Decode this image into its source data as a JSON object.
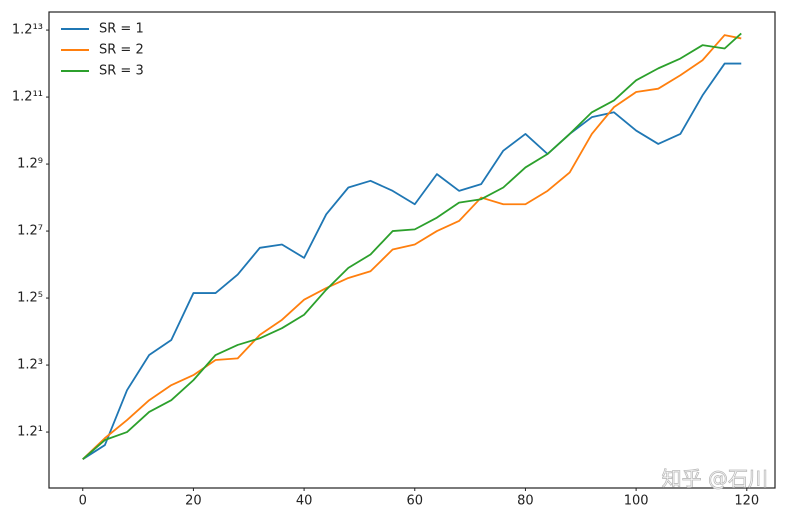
{
  "chart_data": {
    "type": "line",
    "x": [
      0,
      4,
      8,
      12,
      16,
      20,
      24,
      28,
      32,
      36,
      40,
      44,
      48,
      52,
      56,
      60,
      64,
      68,
      72,
      76,
      80,
      84,
      88,
      92,
      96,
      100,
      104,
      108,
      112,
      116,
      119
    ],
    "series": [
      {
        "name": "SR = 1",
        "color": "#1f77b4",
        "values": [
          1.035,
          1.118,
          1.507,
          1.825,
          1.981,
          2.557,
          2.557,
          2.827,
          3.271,
          3.331,
          3.097,
          3.925,
          4.542,
          4.71,
          4.46,
          4.146,
          4.885,
          4.46,
          4.625,
          5.55,
          6.08,
          5.45,
          6.08,
          6.66,
          6.84,
          6.192,
          5.757,
          6.08,
          7.498,
          8.916,
          8.916
        ]
      },
      {
        "name": "SR = 2",
        "color": "#ff7f0e",
        "values": [
          1.035,
          1.161,
          1.281,
          1.427,
          1.549,
          1.636,
          1.776,
          1.792,
          2.036,
          2.21,
          2.466,
          2.628,
          2.776,
          2.879,
          3.241,
          3.331,
          3.583,
          3.785,
          4.3,
          4.146,
          4.146,
          4.46,
          4.93,
          6.08,
          7.034,
          7.636,
          7.777,
          8.365,
          9.08,
          10.411,
          10.223
        ]
      },
      {
        "name": "SR = 3",
        "color": "#2ca02c",
        "values": [
          1.035,
          1.149,
          1.2,
          1.339,
          1.427,
          1.592,
          1.825,
          1.928,
          1.999,
          2.112,
          2.272,
          2.604,
          2.932,
          3.154,
          3.583,
          3.616,
          3.854,
          4.184,
          4.261,
          4.542,
          5.066,
          5.45,
          6.08,
          6.84,
          7.296,
          8.138,
          8.686,
          9.164,
          9.855,
          9.678,
          10.505
        ]
      }
    ],
    "xlim": [
      -6.1,
      125.1
    ],
    "xticks": [
      0,
      20,
      40,
      60,
      80,
      100,
      120
    ],
    "ylim": [
      0.885,
      11.805
    ],
    "yscale": "log",
    "yticks": [
      {
        "value": 1.2,
        "label": "1.2¹"
      },
      {
        "value": 1.728,
        "label": "1.2³"
      },
      {
        "value": 2.48832,
        "label": "1.2⁵"
      },
      {
        "value": 3.5831808,
        "label": "1.2⁷"
      },
      {
        "value": 5.159780352,
        "label": "1.2⁹"
      },
      {
        "value": 7.43008370688,
        "label": "1.2¹¹"
      },
      {
        "value": 10.6993205379,
        "label": "1.2¹³"
      }
    ],
    "grid": false,
    "legend": "upper-left",
    "watermark": "知乎 @石川"
  }
}
